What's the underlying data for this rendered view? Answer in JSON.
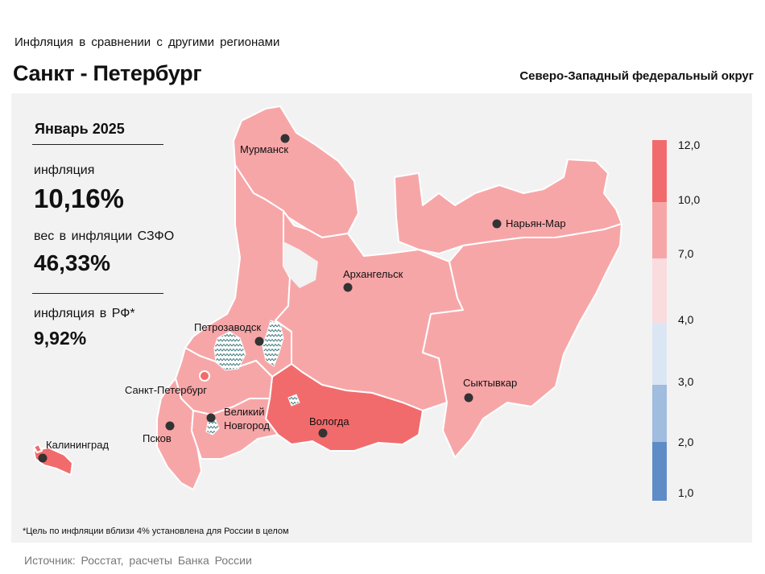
{
  "header": {
    "subtitle": "Инфляция в сравнении с другими регионами",
    "title": "Санкт - Петербург",
    "district": "Северо-Западный федеральный округ"
  },
  "stats": {
    "month": "Январь 2025",
    "inflation_label": "инфляция",
    "inflation_value": "10,16%",
    "weight_label": "вес в инфляции СЗФО",
    "weight_value": "46,33%",
    "rf_label": "инфляция в РФ*",
    "rf_value": "9,92%"
  },
  "cities": {
    "murmansk": "Мурманск",
    "naryan_mar": "Нарьян-Мар",
    "arkhangelsk": "Архангельск",
    "petrozavodsk": "Петрозаводск",
    "spb": "Санкт-Петербург",
    "syktyvkar": "Сыктывкар",
    "vologda": "Вологда",
    "novgorod_1": "Великий",
    "novgorod_2": "Новгород",
    "pskov": "Псков",
    "kaliningrad": "Калининград"
  },
  "legend": {
    "colors": [
      "#f26b6c",
      "#f7a6a8",
      "#fadcdf",
      "#dbe6f5",
      "#a0bcde",
      "#5e8cc6"
    ],
    "ticks": [
      "12,0",
      "10,0",
      "7,0",
      "4,0",
      "3,0",
      "2,0",
      "1,0"
    ]
  },
  "footnote": "*Цель по инфляции вблизи 4% установлена для России в целом",
  "source": "Источник: Росстат, расчеты Банка России"
}
